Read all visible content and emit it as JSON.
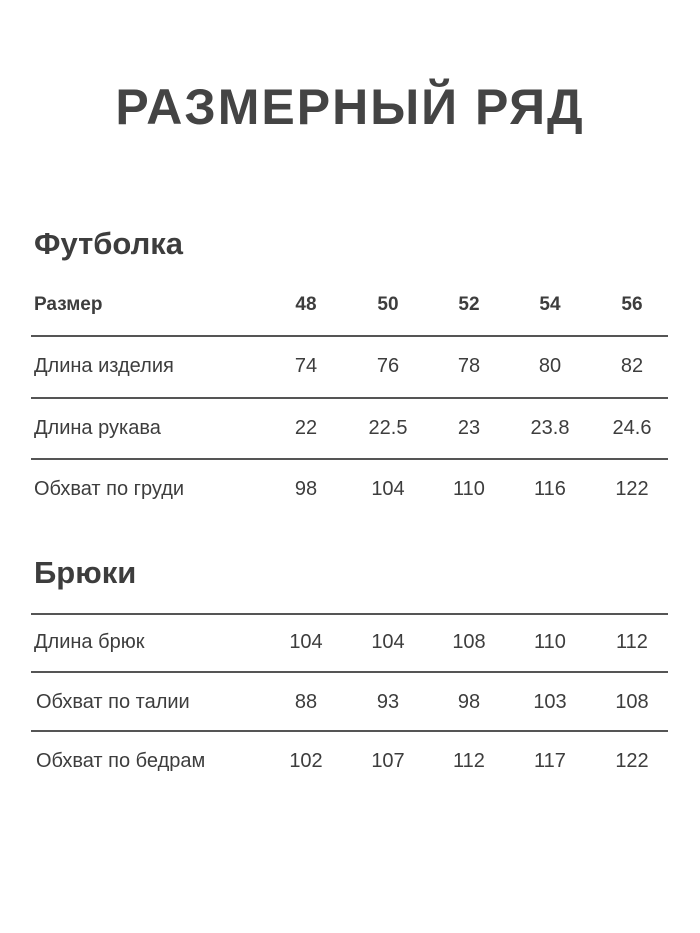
{
  "title": "РАЗМЕРНЫЙ РЯД",
  "tshirt": {
    "heading": "Футболка",
    "header": {
      "label": "Размер",
      "sizes": [
        "48",
        "50",
        "52",
        "54",
        "56"
      ]
    },
    "rows": [
      {
        "label": "Длина изделия",
        "values": [
          "74",
          "76",
          "78",
          "80",
          "82"
        ]
      },
      {
        "label": "Длина рукава",
        "values": [
          "22",
          "22.5",
          "23",
          "23.8",
          "24.6"
        ]
      },
      {
        "label": "Обхват по груди",
        "values": [
          "98",
          "104",
          "110",
          "116",
          "122"
        ]
      }
    ]
  },
  "pants": {
    "heading": "Брюки",
    "rows": [
      {
        "label": "Длина брюк",
        "values": [
          "104",
          "104",
          "108",
          "110",
          "112"
        ]
      },
      {
        "label": "Обхват по талии",
        "values": [
          "88",
          "93",
          "98",
          "103",
          "108"
        ]
      },
      {
        "label": "Обхват по бедрам",
        "values": [
          "102",
          "107",
          "112",
          "117",
          "122"
        ]
      }
    ]
  }
}
